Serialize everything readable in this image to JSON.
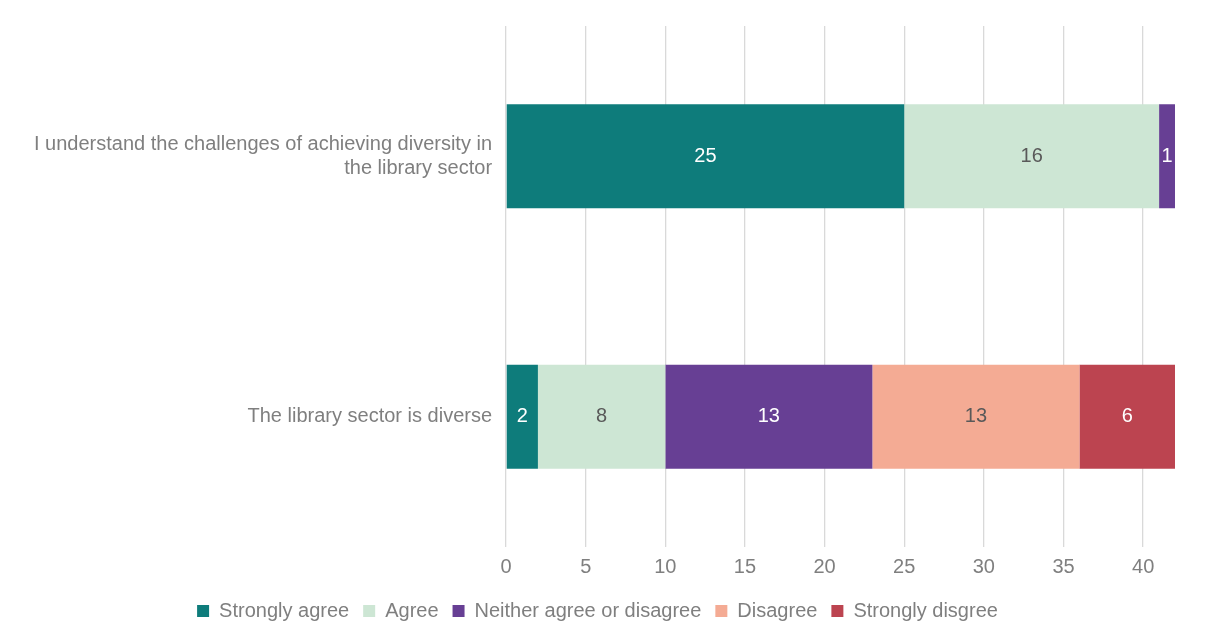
{
  "chart_data": {
    "type": "bar",
    "orientation": "horizontal",
    "stacked": true,
    "categories": [
      "I understand the challenges of achieving diversity in the library sector",
      "The library sector is diverse"
    ],
    "series": [
      {
        "name": "Strongly agree",
        "color": "#0e7c7b",
        "values": [
          25,
          2
        ]
      },
      {
        "name": "Agree",
        "color": "#cde6d4",
        "values": [
          16,
          8
        ]
      },
      {
        "name": "Neither agree or disagree",
        "color": "#673f94",
        "values": [
          1,
          13
        ]
      },
      {
        "name": "Disagree",
        "color": "#f4ab94",
        "values": [
          null,
          13
        ]
      },
      {
        "name": "Strongly disgree",
        "color": "#bc4450",
        "values": [
          null,
          6
        ]
      }
    ],
    "xlim": [
      0,
      42
    ],
    "xticks": [
      0,
      5,
      10,
      15,
      20,
      25,
      30,
      35,
      40
    ],
    "grid": "x",
    "legend": "bottom",
    "data_labels": true
  }
}
